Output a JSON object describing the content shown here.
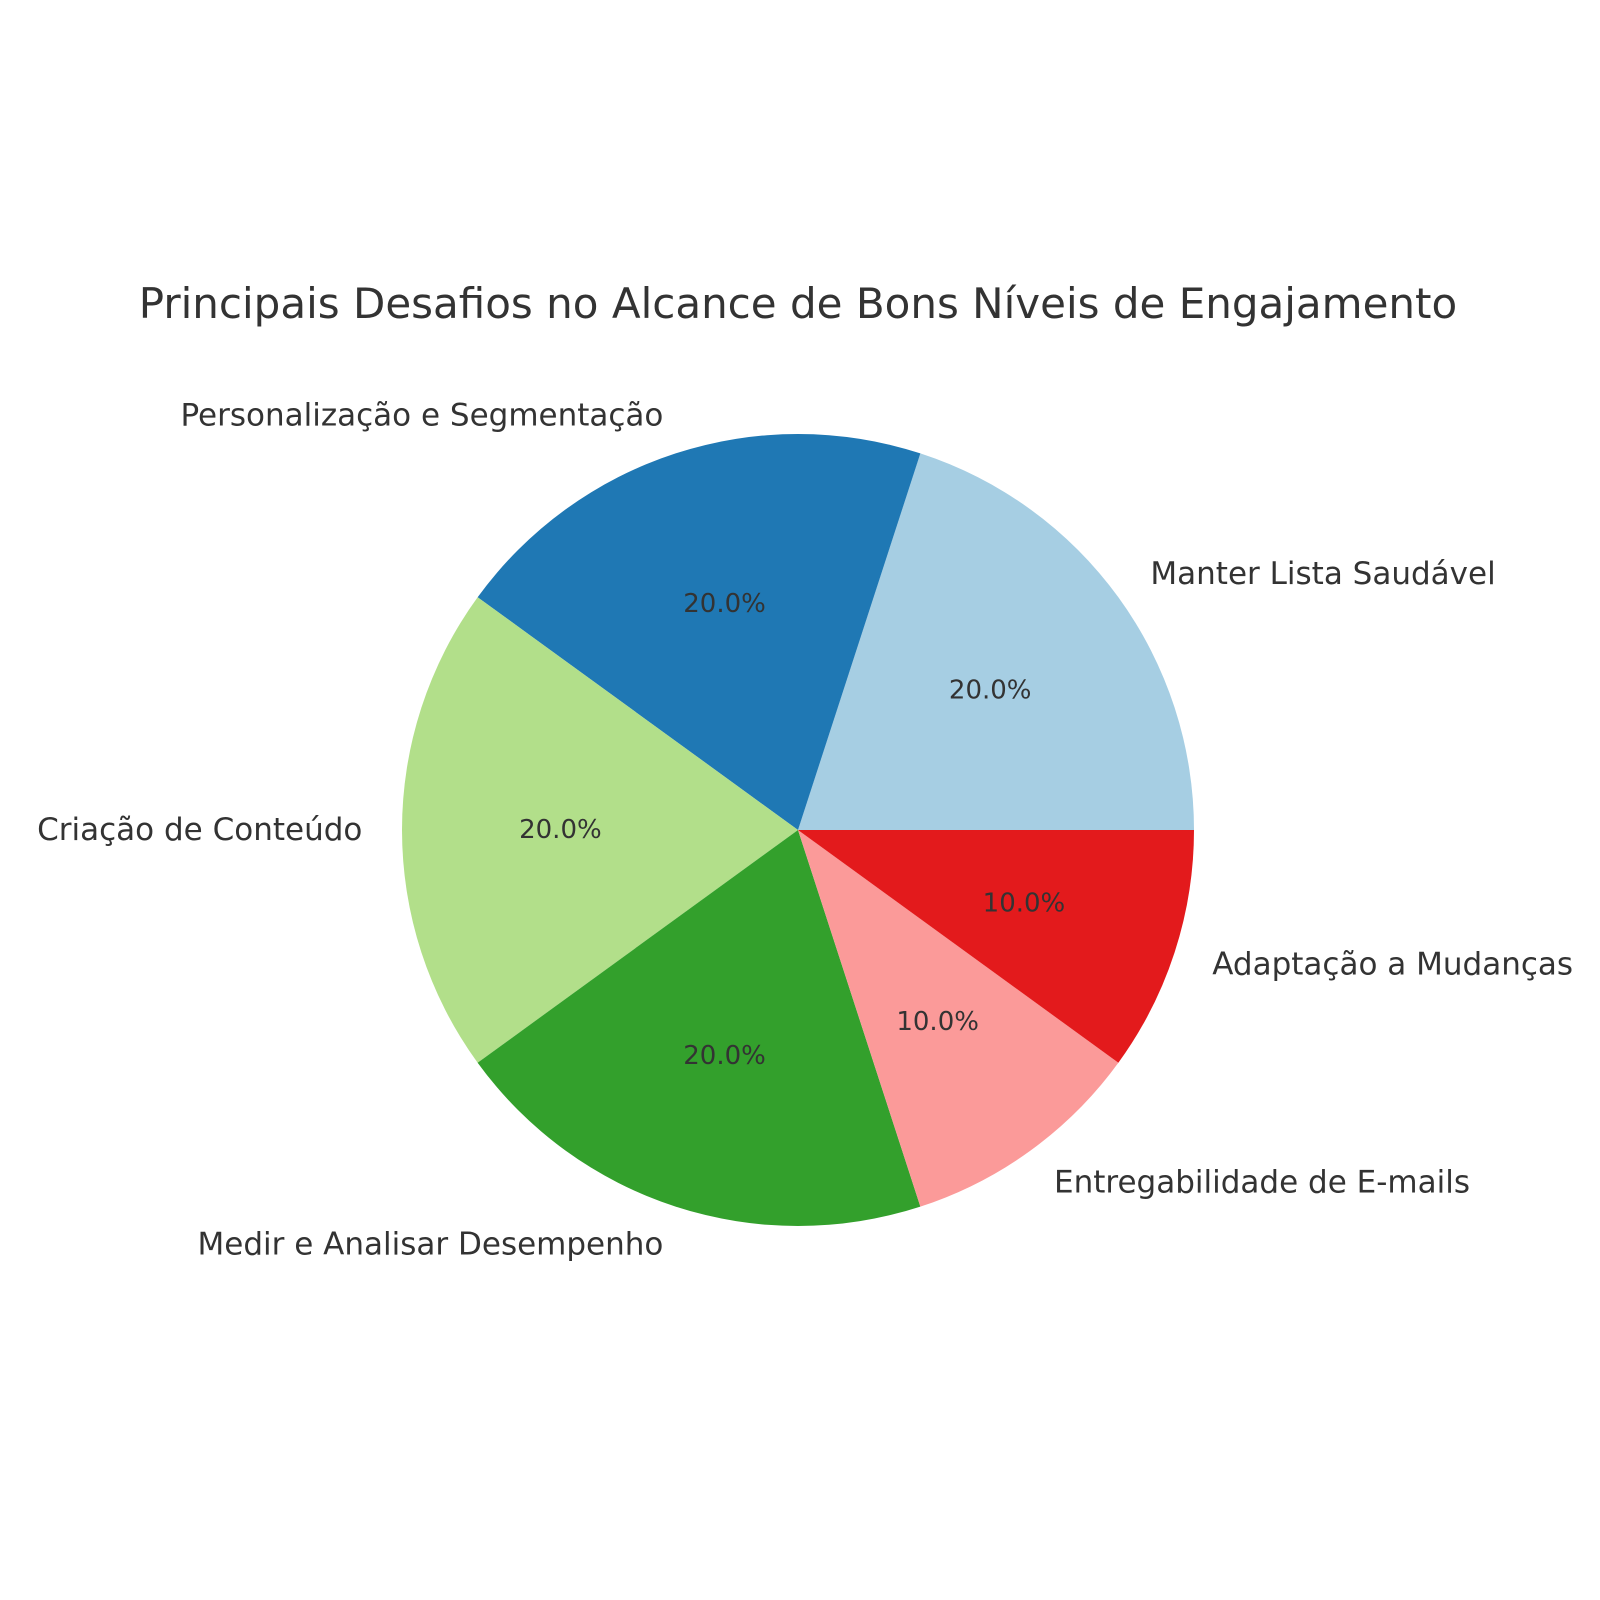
{
  "chart_data": {
    "type": "pie",
    "title": "Principais Desafios no Alcance de Bons Níveis de Engajamento",
    "start_angle_deg": 0,
    "direction": "counterclockwise",
    "slices": [
      {
        "label": "Manter Lista Saudável",
        "value": 20,
        "pct_label": "20.0%",
        "color": "#a6cee3"
      },
      {
        "label": "Personalização e Segmentação",
        "value": 20,
        "pct_label": "20.0%",
        "color": "#1f78b4"
      },
      {
        "label": "Criação de Conteúdo",
        "value": 20,
        "pct_label": "20.0%",
        "color": "#b2df8a"
      },
      {
        "label": "Medir e Analisar Desempenho",
        "value": 20,
        "pct_label": "20.0%",
        "color": "#33a02c"
      },
      {
        "label": "Entregabilidade de E-mails",
        "value": 10,
        "pct_label": "10.0%",
        "color": "#fb9a99"
      },
      {
        "label": "Adaptação a Mudanças",
        "value": 10,
        "pct_label": "10.0%",
        "color": "#e31a1c"
      }
    ]
  }
}
